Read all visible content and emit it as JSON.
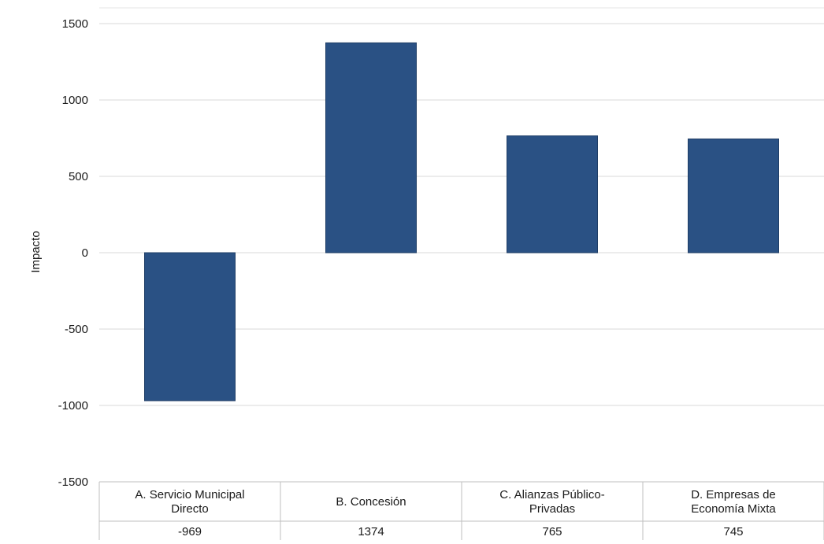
{
  "chart_data": {
    "type": "bar",
    "ylabel": "Impacto",
    "xlabel": "",
    "ylim": [
      -1500,
      1500
    ],
    "yticks": [
      1500,
      1000,
      500,
      0,
      -500,
      -1000,
      -1500
    ],
    "grid": true,
    "categories": [
      [
        "A. Servicio Municipal",
        "Directo"
      ],
      [
        "B. Concesión"
      ],
      [
        "C. Alianzas Público-",
        "Privadas"
      ],
      [
        "D. Empresas de",
        "Economía Mixta"
      ]
    ],
    "values": [
      -969,
      1374,
      765,
      745
    ],
    "data_table": [
      "-969",
      "1374",
      "765",
      "745"
    ],
    "colors": {
      "bar": "#2a5184",
      "bar_edge": "#1f3e66",
      "grid": "#d9d9d9",
      "axis": "#bfbfbf"
    }
  }
}
